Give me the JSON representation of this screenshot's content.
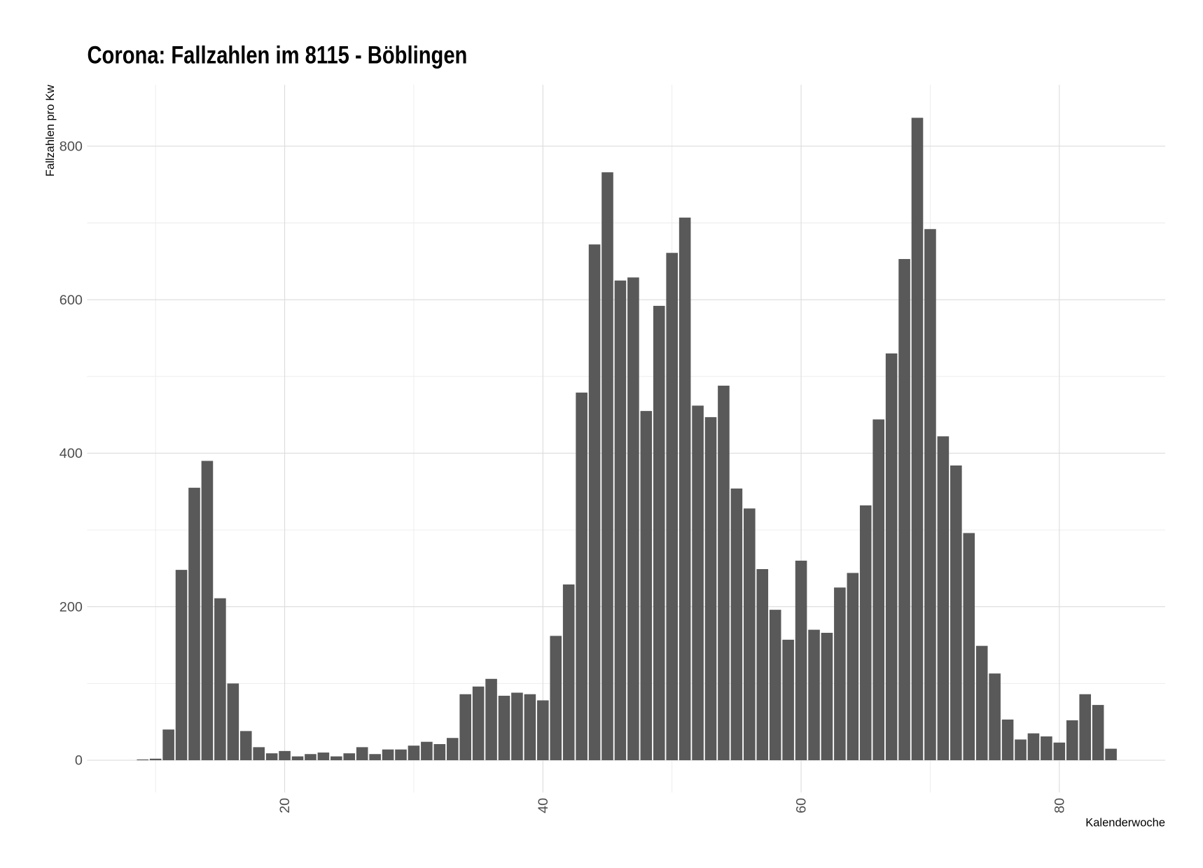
{
  "chart_data": {
    "type": "bar",
    "title": "Corona: Fallzahlen im 8115 - Böblingen",
    "x_label": "Kalenderwoche",
    "y_label": "Fallzahlen pro Kw",
    "x": [
      9,
      10,
      11,
      12,
      13,
      14,
      15,
      16,
      17,
      18,
      19,
      20,
      21,
      22,
      23,
      24,
      25,
      26,
      27,
      28,
      29,
      30,
      31,
      32,
      33,
      34,
      35,
      36,
      37,
      38,
      39,
      40,
      41,
      42,
      43,
      44,
      45,
      46,
      47,
      48,
      49,
      50,
      51,
      52,
      53,
      54,
      55,
      56,
      57,
      58,
      59,
      60,
      61,
      62,
      63,
      64,
      65,
      66,
      67,
      68,
      69,
      70,
      71,
      72,
      73,
      74,
      75,
      76,
      77,
      78,
      79,
      80,
      81,
      82,
      83,
      84
    ],
    "values": [
      1,
      2,
      40,
      248,
      355,
      390,
      211,
      100,
      38,
      17,
      9,
      12,
      5,
      8,
      10,
      5,
      9,
      17,
      8,
      14,
      14,
      19,
      24,
      21,
      29,
      86,
      96,
      106,
      84,
      88,
      86,
      78,
      162,
      229,
      479,
      672,
      766,
      625,
      629,
      455,
      592,
      661,
      707,
      462,
      447,
      488,
      354,
      328,
      249,
      196,
      157,
      260,
      170,
      166,
      225,
      244,
      332,
      444,
      530,
      653,
      837,
      692,
      422,
      384,
      296,
      149,
      113,
      53,
      27,
      35,
      31,
      23,
      52,
      86,
      72,
      15
    ],
    "color": "#595959",
    "xlim": [
      4.7,
      88.2
    ],
    "xticks": [
      20,
      40,
      60,
      80
    ],
    "minor_xticks": [
      10,
      30,
      50,
      70
    ],
    "ylim": [
      -42,
      880
    ],
    "yticks": [
      0,
      200,
      400,
      600,
      800
    ],
    "minor_yticks": [
      100,
      300,
      500,
      700
    ],
    "grid": true
  }
}
